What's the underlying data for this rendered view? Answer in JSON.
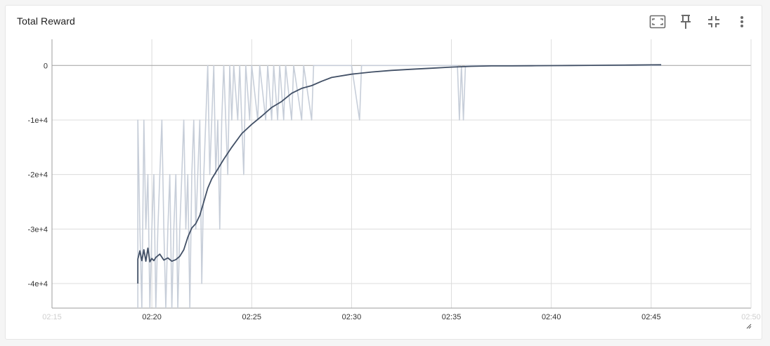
{
  "card": {
    "title": "Total Reward",
    "toolbar": [
      {
        "name": "fit-domain-icon",
        "tooltip": "Fit domain to data"
      },
      {
        "name": "pin-icon",
        "tooltip": "Pin card"
      },
      {
        "name": "collapse-icon",
        "tooltip": "Exit full screen"
      },
      {
        "name": "more-vert-icon",
        "tooltip": "More options"
      }
    ]
  },
  "colors": {
    "smoothed": "#425066",
    "raw": "#c7ced9",
    "grid": "#dcdcdc",
    "zero_line": "#a0a0a0",
    "axis": "#9e9e9e"
  },
  "chart_data": {
    "type": "line",
    "title": "Total Reward",
    "xlabel": "",
    "ylabel": "",
    "x_ticks": [
      "02:15",
      "02:20",
      "02:25",
      "02:30",
      "02:35",
      "02:40",
      "02:45",
      "02:50"
    ],
    "y_ticks": [
      "0",
      "-1e+4",
      "-2e+4",
      "-3e+4",
      "-4e+4"
    ],
    "y_tick_values": [
      0,
      -10000,
      -20000,
      -30000,
      -40000
    ],
    "xlim": [
      "02:15",
      "02:50"
    ],
    "ylim": [
      -44500,
      4800
    ],
    "grid": true,
    "x_unit": "minutes after 02:15",
    "series": [
      {
        "style": "smoothed",
        "points": [
          [
            4.3,
            -40000
          ],
          [
            4.3,
            -35500
          ],
          [
            4.4,
            -34000
          ],
          [
            4.5,
            -35800
          ],
          [
            4.6,
            -33800
          ],
          [
            4.7,
            -35900
          ],
          [
            4.8,
            -33500
          ],
          [
            4.9,
            -36000
          ],
          [
            5.0,
            -35400
          ],
          [
            5.1,
            -35800
          ],
          [
            5.2,
            -35200
          ],
          [
            5.4,
            -34600
          ],
          [
            5.6,
            -35700
          ],
          [
            5.8,
            -35300
          ],
          [
            6.0,
            -35900
          ],
          [
            6.2,
            -35600
          ],
          [
            6.4,
            -35000
          ],
          [
            6.6,
            -33800
          ],
          [
            6.8,
            -31500
          ],
          [
            7.0,
            -29800
          ],
          [
            7.2,
            -29000
          ],
          [
            7.4,
            -27500
          ],
          [
            7.6,
            -25000
          ],
          [
            7.8,
            -22500
          ],
          [
            8.0,
            -20800
          ],
          [
            8.3,
            -19000
          ],
          [
            8.6,
            -17200
          ],
          [
            9.0,
            -15000
          ],
          [
            9.5,
            -12500
          ],
          [
            10.0,
            -10800
          ],
          [
            10.5,
            -9300
          ],
          [
            11.0,
            -7700
          ],
          [
            11.5,
            -6600
          ],
          [
            12.0,
            -5100
          ],
          [
            12.5,
            -4200
          ],
          [
            13.0,
            -3700
          ],
          [
            13.5,
            -2900
          ],
          [
            14.0,
            -2200
          ],
          [
            15.0,
            -1600
          ],
          [
            16.0,
            -1200
          ],
          [
            17.0,
            -900
          ],
          [
            18.0,
            -700
          ],
          [
            19.0,
            -500
          ],
          [
            20.0,
            -300
          ],
          [
            21.0,
            -150
          ],
          [
            22.0,
            -80
          ],
          [
            23.0,
            -80
          ],
          [
            24.0,
            -50
          ],
          [
            25.0,
            -30
          ],
          [
            26.0,
            0
          ],
          [
            27.0,
            30
          ],
          [
            28.0,
            50
          ],
          [
            29.0,
            80
          ],
          [
            30.0,
            110
          ],
          [
            30.5,
            130
          ]
        ]
      },
      {
        "style": "raw",
        "points": [
          [
            4.3,
            -44500
          ],
          [
            4.3,
            -10000
          ],
          [
            4.4,
            -30000
          ],
          [
            4.5,
            -44500
          ],
          [
            4.6,
            -10000
          ],
          [
            4.7,
            -30000
          ],
          [
            4.8,
            -20000
          ],
          [
            4.9,
            -44500
          ],
          [
            5.0,
            -30000
          ],
          [
            5.1,
            -20000
          ],
          [
            5.2,
            -44500
          ],
          [
            5.3,
            -30000
          ],
          [
            5.4,
            -20000
          ],
          [
            5.5,
            -10000
          ],
          [
            5.6,
            -30000
          ],
          [
            5.7,
            -44500
          ],
          [
            5.8,
            -30000
          ],
          [
            5.9,
            -20000
          ],
          [
            6.0,
            -44500
          ],
          [
            6.1,
            -30000
          ],
          [
            6.2,
            -20000
          ],
          [
            6.3,
            -44500
          ],
          [
            6.4,
            -30000
          ],
          [
            6.5,
            -20000
          ],
          [
            6.6,
            -10000
          ],
          [
            6.7,
            -30000
          ],
          [
            6.8,
            -20000
          ],
          [
            6.9,
            -44500
          ],
          [
            7.0,
            -20000
          ],
          [
            7.1,
            -10000
          ],
          [
            7.2,
            -30000
          ],
          [
            7.3,
            -20000
          ],
          [
            7.4,
            -10000
          ],
          [
            7.5,
            -40000
          ],
          [
            7.6,
            -20000
          ],
          [
            7.7,
            -10000
          ],
          [
            7.8,
            0
          ],
          [
            7.9,
            -20000
          ],
          [
            8.0,
            -10000
          ],
          [
            8.1,
            0
          ],
          [
            8.2,
            -20000
          ],
          [
            8.3,
            -10000
          ],
          [
            8.4,
            -30000
          ],
          [
            8.5,
            -10000
          ],
          [
            8.6,
            0
          ],
          [
            8.7,
            -10000
          ],
          [
            8.8,
            -20000
          ],
          [
            8.9,
            0
          ],
          [
            9.0,
            -10000
          ],
          [
            9.1,
            0
          ],
          [
            9.3,
            -10000
          ],
          [
            9.4,
            0
          ],
          [
            9.6,
            -20000
          ],
          [
            9.7,
            0
          ],
          [
            9.9,
            -10000
          ],
          [
            10.0,
            0
          ],
          [
            10.3,
            -10000
          ],
          [
            10.4,
            0
          ],
          [
            10.7,
            -10000
          ],
          [
            10.8,
            0
          ],
          [
            11.0,
            -10000
          ],
          [
            11.1,
            0
          ],
          [
            11.3,
            -10000
          ],
          [
            11.4,
            0
          ],
          [
            11.6,
            -10000
          ],
          [
            11.7,
            0
          ],
          [
            12.0,
            -10000
          ],
          [
            12.1,
            0
          ],
          [
            12.5,
            -10000
          ],
          [
            12.6,
            0
          ],
          [
            13.0,
            -10000
          ],
          [
            13.1,
            0
          ],
          [
            14.0,
            0
          ],
          [
            15.0,
            0
          ],
          [
            15.4,
            -10000
          ],
          [
            15.5,
            0
          ],
          [
            20.0,
            0
          ],
          [
            20.3,
            0
          ],
          [
            20.4,
            -10000
          ],
          [
            20.5,
            0
          ],
          [
            20.6,
            -10000
          ],
          [
            20.7,
            0
          ],
          [
            30.5,
            0
          ]
        ]
      }
    ]
  }
}
